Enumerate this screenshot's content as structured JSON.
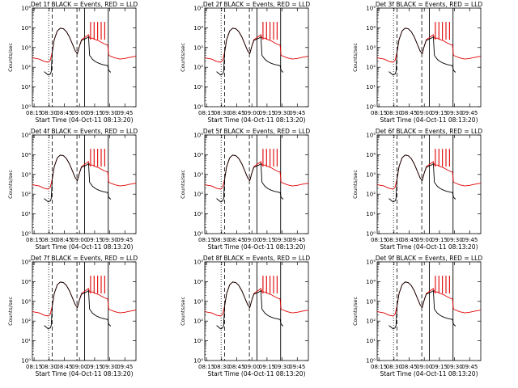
{
  "chart_data": {
    "type": "line",
    "layout": "3x3 grid",
    "y_scale": "log",
    "ylim": [
      1,
      100000
    ],
    "y_tick_labels": [
      "10⁰",
      "10¹",
      "10²",
      "10³",
      "10⁴",
      "10⁵"
    ],
    "ylabel": "Counts/sec",
    "xlabel": "Start Time (04-Oct-11 08:13:20)",
    "x_tick_labels": [
      "08:15",
      "08:30",
      "08:45",
      "09:00",
      "09:15",
      "09:30",
      "09:45"
    ],
    "x_tick_minutes": [
      15,
      30,
      45,
      60,
      75,
      90,
      105
    ],
    "xlim_minutes": [
      13.3,
      116
    ],
    "grid": false,
    "vertical_markers": {
      "dotted": 29.5,
      "dashed": [
        33,
        57.5
      ],
      "solid": [
        65,
        88.5
      ]
    },
    "series_legend_text": "BLACK = Events, RED = LLD",
    "panels": [
      {
        "title": "Det 1f BLACK = Events, RED = LLD"
      },
      {
        "title": "Det 2f BLACK = Events, RED = LLD"
      },
      {
        "title": "Det 3f BLACK = Events, RED = LLD"
      },
      {
        "title": "Det 4f BLACK = Events, RED = LLD"
      },
      {
        "title": "Det 5f BLACK = Events, RED = LLD"
      },
      {
        "title": "Det 6f BLACK = Events, RED = LLD"
      },
      {
        "title": "Det 7f BLACK = Events, RED = LLD"
      },
      {
        "title": "Det 8f BLACK = Events, RED = LLD"
      },
      {
        "title": "Det 9f BLACK = Events, RED = LLD"
      }
    ],
    "series": [
      {
        "color": "#e00000",
        "points": [
          [
            13.3,
            300
          ],
          [
            20,
            260
          ],
          [
            25,
            200
          ],
          [
            29,
            180
          ],
          [
            31,
            220
          ],
          [
            33,
            600
          ],
          [
            35,
            2500
          ],
          [
            38,
            7000
          ],
          [
            41,
            9500
          ],
          [
            44,
            9000
          ],
          [
            47,
            6500
          ],
          [
            50,
            3500
          ],
          [
            53,
            1500
          ],
          [
            56,
            650
          ],
          [
            58,
            500
          ],
          [
            60,
            1200
          ],
          [
            62,
            2500
          ],
          [
            65,
            3200
          ],
          [
            67,
            3800
          ],
          [
            69,
            4500
          ],
          [
            70,
            3000
          ],
          [
            73,
            3000
          ],
          [
            76,
            2500
          ],
          [
            79,
            2200
          ],
          [
            82,
            1800
          ],
          [
            85,
            1500
          ],
          [
            88,
            1300
          ],
          [
            89,
            400
          ],
          [
            95,
            300
          ],
          [
            100,
            260
          ],
          [
            105,
            280
          ],
          [
            110,
            320
          ],
          [
            116,
            360
          ]
        ]
      },
      {
        "color": "#000000",
        "points": [
          [
            25,
            60
          ],
          [
            29,
            40
          ],
          [
            31,
            45
          ],
          [
            32,
            60
          ],
          [
            33,
            600
          ],
          [
            35,
            2500
          ],
          [
            38,
            7000
          ],
          [
            41,
            9500
          ],
          [
            44,
            9000
          ],
          [
            47,
            6500
          ],
          [
            50,
            3500
          ],
          [
            53,
            1500
          ],
          [
            56,
            650
          ],
          [
            58,
            500
          ],
          [
            60,
            1200
          ],
          [
            62,
            2300
          ],
          [
            65,
            2700
          ],
          [
            67,
            3000
          ],
          [
            69,
            3500
          ],
          [
            70,
            400
          ],
          [
            73,
            250
          ],
          [
            76,
            190
          ],
          [
            79,
            160
          ],
          [
            82,
            140
          ],
          [
            85,
            130
          ],
          [
            88,
            120
          ],
          [
            89,
            70
          ],
          [
            91,
            55
          ]
        ]
      }
    ],
    "spike_minutes": [
      71,
      74.5,
      78,
      81.5,
      85
    ],
    "spike_peak": 20000
  }
}
